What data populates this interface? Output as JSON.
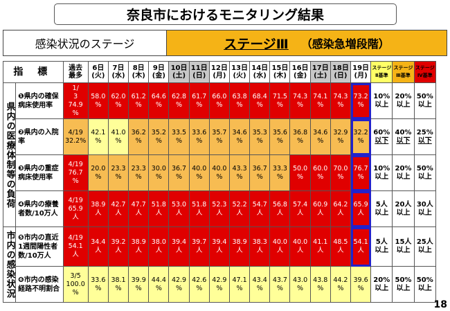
{
  "title": "奈良市におけるモニタリング結果",
  "stage": {
    "label": "感染状況のステージ",
    "value": "ステージⅢ",
    "desc": "（感染急増段階）"
  },
  "header": {
    "indicator": "指 標",
    "max": [
      "過去",
      "最多"
    ],
    "dates": [
      {
        "d": "6日",
        "w": "(火)",
        "hol": false
      },
      {
        "d": "7日",
        "w": "(水)",
        "hol": false
      },
      {
        "d": "8日",
        "w": "(木)",
        "hol": false
      },
      {
        "d": "9日",
        "w": "(金)",
        "hol": false
      },
      {
        "d": "10日",
        "w": "(土)",
        "hol": true
      },
      {
        "d": "11日",
        "w": "(日)",
        "hol": true
      },
      {
        "d": "12日",
        "w": "(月)",
        "hol": false
      },
      {
        "d": "13日",
        "w": "(火)",
        "hol": false
      },
      {
        "d": "14日",
        "w": "(水)",
        "hol": false
      },
      {
        "d": "15日",
        "w": "(木)",
        "hol": false
      },
      {
        "d": "16日",
        "w": "(金)",
        "hol": false
      },
      {
        "d": "17日",
        "w": "(土)",
        "hol": true
      },
      {
        "d": "18日",
        "w": "(日)",
        "hol": true
      },
      {
        "d": "19日",
        "w": "(月)",
        "hol": false
      }
    ],
    "thresholds": [
      "ステージⅡ基準",
      "ステージⅢ基準",
      "ステージⅣ基準"
    ]
  },
  "categories": {
    "medical": "県内の医療体制等の負荷",
    "infection": "市内の感染状況"
  },
  "rows": [
    {
      "name": "❶県内の確保病床使用率",
      "max": "1/ 3 74.9 %",
      "max_color": "r",
      "values": [
        "58.0 %",
        "62.0 %",
        "61.2 %",
        "64.6 %",
        "62.8 %",
        "61.7 %",
        "66.0 %",
        "63.8 %",
        "68.4 %",
        "71.5 %",
        "74.3 %",
        "74.1 %",
        "74.3 %",
        "73.2 %"
      ],
      "colors": [
        "r",
        "r",
        "r",
        "r",
        "r",
        "r",
        "r",
        "r",
        "r",
        "r",
        "r",
        "r",
        "r",
        "r"
      ],
      "thresholds": [
        "10% 以上",
        "20% 以上",
        "50% 以上"
      ],
      "t_under": false
    },
    {
      "name": "❷県内の入院率",
      "max": "4/19 32.2%",
      "max_color": "o",
      "values": [
        "42.1 %",
        "41.0 %",
        "36.2 %",
        "35.2 %",
        "33.5 %",
        "33.6 %",
        "35.7 %",
        "34.6 %",
        "35.3 %",
        "35.6 %",
        "36.8 %",
        "34.6 %",
        "32.9 %",
        "32.2 %"
      ],
      "colors": [
        "y",
        "y",
        "o",
        "o",
        "o",
        "o",
        "o",
        "o",
        "o",
        "o",
        "o",
        "o",
        "o",
        "o"
      ],
      "thresholds": [
        "60% 以下",
        "40% 以下",
        "25% 以下"
      ],
      "t_under": true
    },
    {
      "name": "❸県内の重症病床使用率",
      "max": "4/19 76.7 %",
      "max_color": "r",
      "values": [
        "20.0 %",
        "23.3 %",
        "23.3 %",
        "30.0 %",
        "36.7 %",
        "40.0 %",
        "40.0 %",
        "43.3 %",
        "36.7 %",
        "33.3 %",
        "50.0 %",
        "60.0 %",
        "70.0 %",
        "76.7 %"
      ],
      "colors": [
        "o",
        "o",
        "o",
        "o",
        "o",
        "o",
        "o",
        "o",
        "o",
        "o",
        "r",
        "r",
        "r",
        "r"
      ],
      "thresholds": [
        "10% 以上",
        "20% 以上",
        "50% 以上"
      ],
      "t_under": false
    },
    {
      "name": "❹県内の療養者数/10万人",
      "max": "4/19 65.9 人",
      "max_color": "r",
      "values": [
        "38.9 人",
        "42.7 人",
        "47.7 人",
        "51.8 人",
        "53.0 人",
        "51.8 人",
        "52.3 人",
        "52.2 人",
        "54.7 人",
        "56.8 人",
        "57.4 人",
        "60.9 人",
        "64.2 人",
        "65.9 人"
      ],
      "colors": [
        "r",
        "r",
        "r",
        "r",
        "r",
        "r",
        "r",
        "r",
        "r",
        "r",
        "r",
        "r",
        "r",
        "r"
      ],
      "thresholds": [
        "5人 以上",
        "20人 以上",
        "30人 以上"
      ],
      "t_under": false
    },
    {
      "name": "❺市内の直近1週間陽性者数/10万人",
      "max": "4/19 54.1 人",
      "max_color": "r",
      "values": [
        "34.4 人",
        "39.2 人",
        "38.9 人",
        "38.0 人",
        "39.4 人",
        "39.7 人",
        "39.4 人",
        "38.9 人",
        "38.3 人",
        "40.0 人",
        "40.0 人",
        "41.1 人",
        "48.5 人",
        "54.1 人"
      ],
      "colors": [
        "r",
        "r",
        "r",
        "r",
        "r",
        "r",
        "r",
        "r",
        "r",
        "r",
        "r",
        "r",
        "r",
        "r"
      ],
      "thresholds": [
        "5人 以上",
        "15人 以上",
        "25人 以上"
      ],
      "t_under": false
    },
    {
      "name": "❻市内の感染経路不明割合",
      "max": "3/5 100.0 %",
      "max_color": "y",
      "values": [
        "33.6 %",
        "38.1 %",
        "39.9 %",
        "44.4 %",
        "42.9 %",
        "42.6 %",
        "42.9 %",
        "47.1 %",
        "43.4 %",
        "43.7 %",
        "43.0 %",
        "43.8 %",
        "44.2 %",
        "39.6 %"
      ],
      "colors": [
        "y",
        "y",
        "y",
        "y",
        "y",
        "y",
        "y",
        "y",
        "y",
        "y",
        "y",
        "y",
        "y",
        "y"
      ],
      "thresholds": [
        "20% 以上",
        "50% 以上",
        "50% 以上"
      ],
      "t_under": false
    }
  ],
  "page_number": "18"
}
